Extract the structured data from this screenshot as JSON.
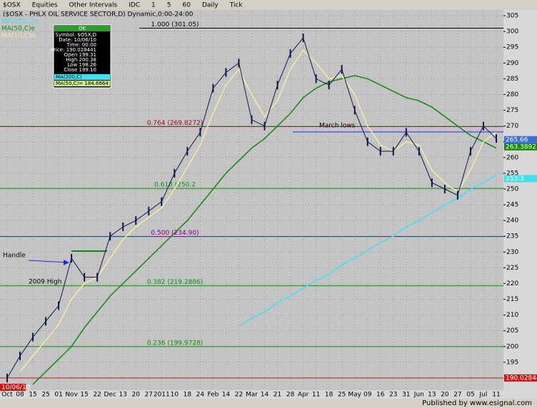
{
  "toolbar": {
    "items": [
      "$OSX",
      "Equities",
      "Other Intervals",
      "IDC",
      "1",
      "5",
      "60",
      "Daily",
      "Tick"
    ]
  },
  "data_window": {
    "header": "OK",
    "lines": [
      "Symbol: $OSX,D",
      "Date: 10/06/10",
      "Time: 00:00",
      "Price: 190.028441",
      "Open 199.31",
      "High 200.38",
      "Low 198.26",
      "Close 199.10"
    ],
    "ma200": "MA(200,C)",
    "ma50": "MA(50,C)= 184.6664"
  },
  "footer": "Published by www.esignal.com",
  "chart_data": {
    "type": "line",
    "title": "($OSX - PHLX OIL SERVICE SECTOR,D) Dynamic,0:00-24:00",
    "categories": [
      "Oct",
      "08",
      "15",
      "25",
      "01",
      "Nov",
      "15",
      "22",
      "Dec",
      "13",
      "20",
      "27",
      "2011",
      "10",
      "18",
      "24",
      "Feb",
      "14",
      "22",
      "Mar",
      "14",
      "21",
      "28",
      "Apr",
      "11",
      "18",
      "25",
      "May",
      "09",
      "16",
      "23",
      "31",
      "Jun",
      "13",
      "20",
      "27",
      "05",
      "Jul",
      "11"
    ],
    "values": [
      190,
      197,
      203,
      208,
      213,
      228,
      222,
      222,
      235,
      238,
      240,
      243,
      246,
      255,
      262,
      268,
      282,
      287,
      290,
      272,
      270,
      283,
      293,
      298,
      285,
      283,
      288,
      275,
      265,
      262,
      262,
      268,
      262,
      252,
      250,
      248,
      262,
      270,
      266
    ],
    "color": "#0a1a4a",
    "series": [
      {
        "name": "MA(200,C)e",
        "color": "#40e0f0",
        "values": [
          null,
          null,
          null,
          null,
          null,
          null,
          null,
          null,
          null,
          null,
          null,
          null,
          null,
          null,
          null,
          null,
          null,
          null,
          206.5,
          209,
          211,
          214,
          216,
          218.5,
          221,
          223,
          226,
          228,
          230.5,
          233,
          235,
          238,
          240,
          242.5,
          245,
          247,
          250,
          252,
          254.5
        ]
      },
      {
        "name": "MA(50,C)e",
        "color": "#108a10",
        "values": [
          null,
          null,
          188,
          192,
          196,
          200,
          206,
          211,
          216,
          220,
          224,
          228,
          232,
          236,
          240,
          245,
          250,
          255,
          259,
          263,
          266,
          270,
          274,
          279,
          282,
          284,
          285,
          286,
          285,
          283,
          281,
          279,
          278,
          276,
          273,
          270,
          267,
          265,
          263
        ]
      },
      {
        "name": "MA(10,C)e",
        "color": "#f5eca0",
        "values": [
          null,
          192,
          197,
          202,
          207,
          215,
          220,
          222,
          228,
          234,
          238,
          241,
          244,
          250,
          257,
          264,
          274,
          283,
          288,
          280,
          273,
          278,
          288,
          294,
          290,
          285,
          286,
          280,
          270,
          264,
          262,
          265,
          264,
          256,
          252,
          249,
          256,
          265,
          268
        ]
      }
    ],
    "levels": [
      {
        "label": "1.000 (301.05)",
        "value": 301.05,
        "color": "#000000"
      },
      {
        "label": "0.764 (269.8272)",
        "value": 269.8272,
        "color": "#8b1010"
      },
      {
        "label": "0.618 (250.2",
        "value": 250.2,
        "color": "#108a10"
      },
      {
        "label": "0.500 (234.90)",
        "value": 234.9,
        "color": "#800080"
      },
      {
        "label": "0.382 (219.2886)",
        "value": 219.2886,
        "color": "#108a10"
      },
      {
        "label": "0.236 (199.9728)",
        "value": 199.9728,
        "color": "#108a10"
      }
    ],
    "markers": [
      {
        "value": 265.66,
        "color": "#3a6fd8"
      },
      {
        "value": 263.3892,
        "color": "#108a10"
      },
      {
        "value": 253.3,
        "color": "#40e0f0"
      },
      {
        "value": 190.028441,
        "color": "#d01010"
      }
    ],
    "annotations": [
      "Handle",
      "2009 High",
      "March lows"
    ],
    "cursor_date": "10/06/10",
    "ylim": [
      186.6,
      306.6
    ],
    "yticks": [
      195,
      200,
      205,
      210,
      215,
      220,
      225,
      230,
      235,
      240,
      245,
      250,
      255,
      260,
      265,
      270,
      275,
      280,
      285,
      290,
      295,
      300,
      305
    ],
    "grid": true
  }
}
